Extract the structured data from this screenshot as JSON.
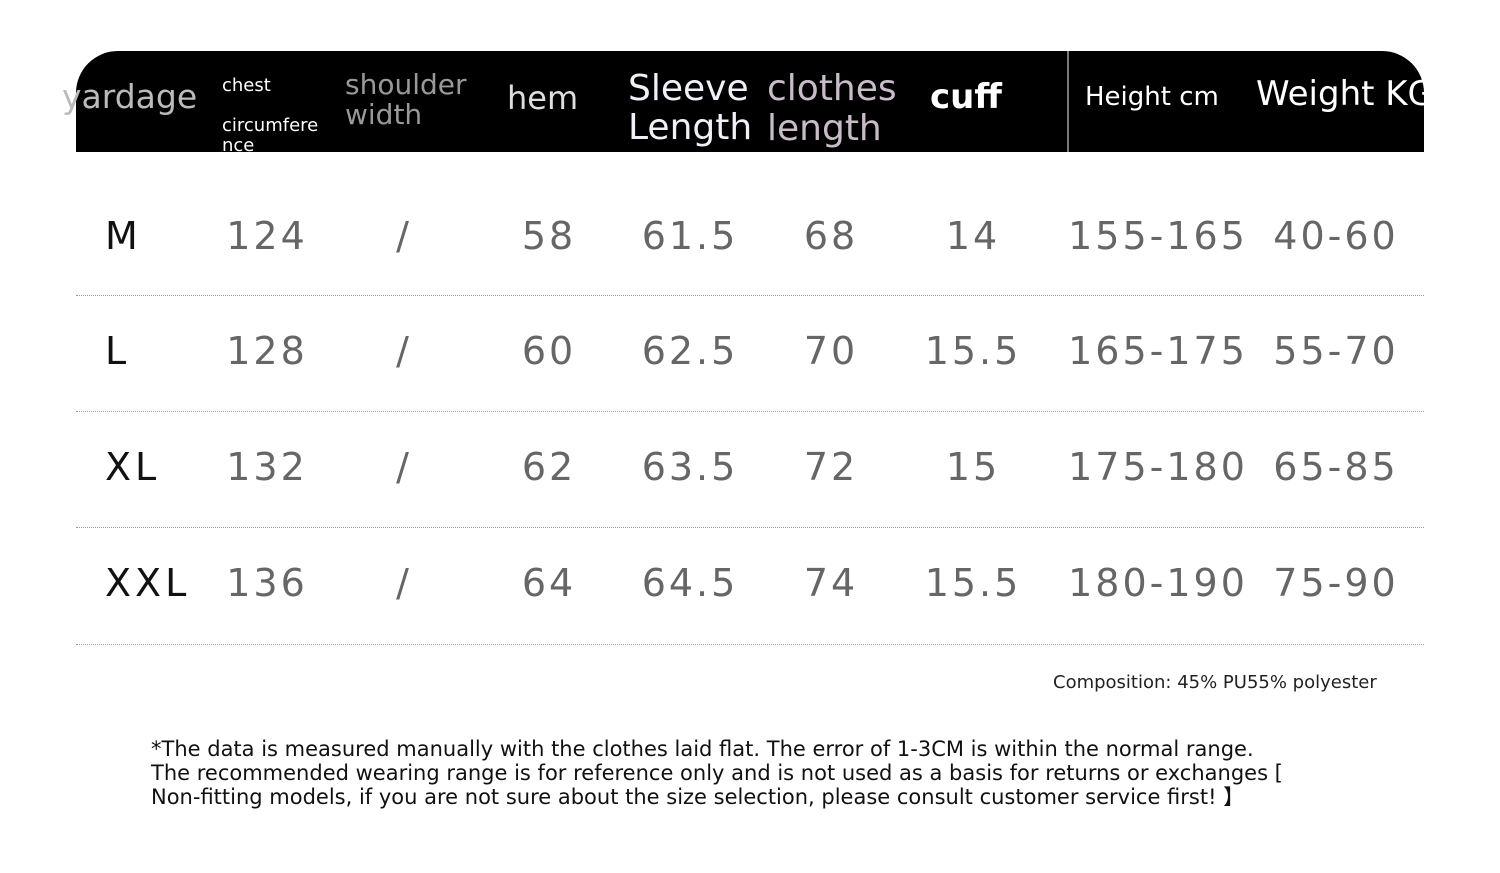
{
  "headers": {
    "yardage": "yardage",
    "chest_line1": "chest",
    "chest_line2": "circumfere",
    "chest_line3": "nce",
    "shoulder_line1": "shoulder",
    "shoulder_line2": "width",
    "hem": "hem",
    "sleeve_line1": "Sleeve",
    "sleeve_line2": "Length",
    "clothes_line1": "clothes",
    "clothes_line2": "length",
    "cuff": "cuff",
    "height": "Height cm",
    "weight": "Weight KG"
  },
  "rows": [
    {
      "size": "M",
      "chest": "124",
      "shoulder": "/",
      "hem": "58",
      "sleeve": "61.5",
      "length": "68",
      "cuff": "14",
      "height": "155-165",
      "weight": "40-60"
    },
    {
      "size": "L",
      "chest": "128",
      "shoulder": "/",
      "hem": "60",
      "sleeve": "62.5",
      "length": "70",
      "cuff": "15.5",
      "height": "165-175",
      "weight": "55-70"
    },
    {
      "size": "XL",
      "chest": "132",
      "shoulder": "/",
      "hem": "62",
      "sleeve": "63.5",
      "length": "72",
      "cuff": "15",
      "height": "175-180",
      "weight": "65-85"
    },
    {
      "size": "XXL",
      "chest": "136",
      "shoulder": "/",
      "hem": "64",
      "sleeve": "64.5",
      "length": "74",
      "cuff": "15.5",
      "height": "180-190",
      "weight": "75-90"
    }
  ],
  "composition": "Composition: 45% PU55% polyester",
  "notes": [
    "*The data is measured manually with the clothes laid flat. The error of 1-3CM is within the normal range.",
    "The recommended wearing range is for reference only and is not used as a basis for returns or exchanges [",
    "Non-fitting models, if you are not sure about the size selection, please consult customer service first! 】"
  ]
}
